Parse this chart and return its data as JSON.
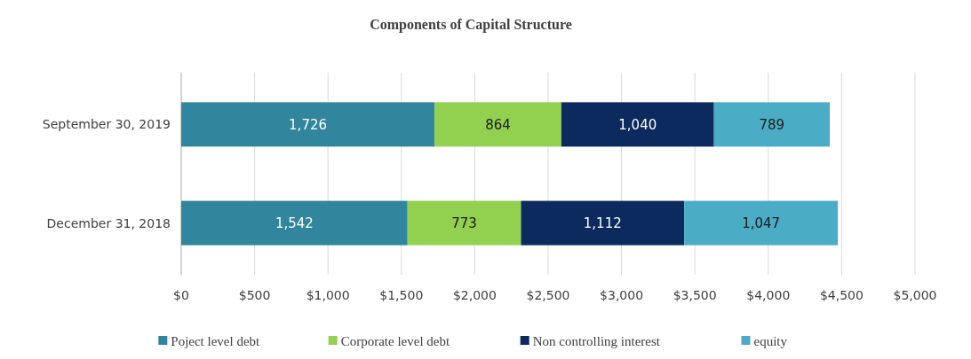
{
  "chart_data": {
    "type": "bar",
    "orientation": "horizontal",
    "stacked": true,
    "title": "Components of Capital Structure",
    "categories": [
      "September 30, 2019",
      "December 31, 2018"
    ],
    "series": [
      {
        "name": "Poject level debt",
        "color": "#31859c",
        "values": [
          1726,
          1542
        ],
        "value_labels": [
          "1,726",
          "1,542"
        ]
      },
      {
        "name": "Corporate level debt",
        "color": "#92d050",
        "values": [
          864,
          773
        ],
        "value_labels": [
          "864",
          "773"
        ]
      },
      {
        "name": "Non controlling interest",
        "color": "#0c2a5e",
        "values": [
          1040,
          1112
        ],
        "value_labels": [
          "1,040",
          "1,112"
        ]
      },
      {
        "name": "equity",
        "color": "#4bacc6",
        "values": [
          789,
          1047
        ],
        "value_labels": [
          "789",
          "1,047"
        ]
      }
    ],
    "xlim": [
      0,
      5000
    ],
    "xticks": [
      {
        "value": 0,
        "label": "$0"
      },
      {
        "value": 500,
        "label": "$500"
      },
      {
        "value": 1000,
        "label": "$1,000"
      },
      {
        "value": 1500,
        "label": "$1,500"
      },
      {
        "value": 2000,
        "label": "$2,000"
      },
      {
        "value": 2500,
        "label": "$2,500"
      },
      {
        "value": 3000,
        "label": "$3,000"
      },
      {
        "value": 3500,
        "label": "$3,500"
      },
      {
        "value": 4000,
        "label": "$4,000"
      },
      {
        "value": 4500,
        "label": "$4,500"
      },
      {
        "value": 5000,
        "label": "$5,000"
      }
    ],
    "grid": "x",
    "legend": "bottom"
  }
}
